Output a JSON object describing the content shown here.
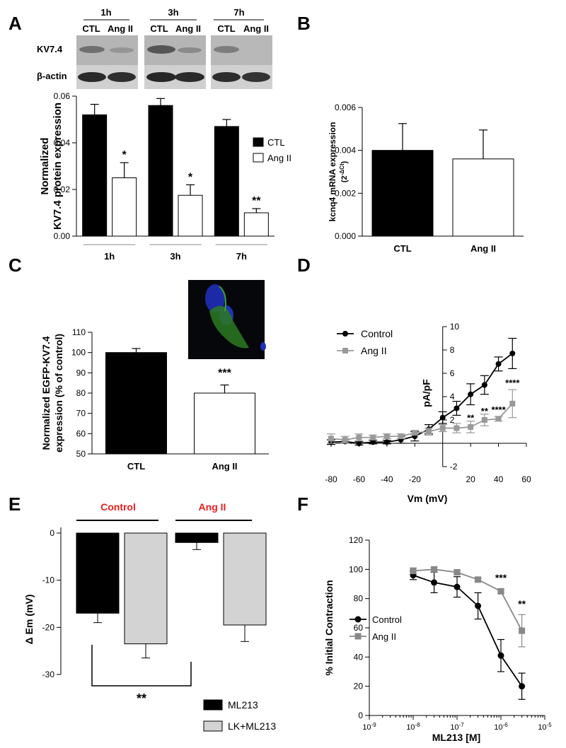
{
  "panels": {
    "A": "A",
    "B": "B",
    "C": "C",
    "D": "D",
    "E": "E",
    "F": "F"
  },
  "chart_data": [
    {
      "id": "A",
      "type": "bar",
      "blot": {
        "time_labels": [
          "1h",
          "3h",
          "7h"
        ],
        "lane_labels": [
          "CTL",
          "Ang II",
          "CTL",
          "Ang II",
          "CTL",
          "Ang II"
        ],
        "row_labels": [
          "KV7.4",
          "β-actin"
        ]
      },
      "ylabel": "Normalized KV7.4 protein expression",
      "ylim": [
        0,
        0.06
      ],
      "yticks": [
        "0.00",
        "0.02",
        "0.04",
        "0.06"
      ],
      "groups": [
        "1h",
        "3h",
        "7h"
      ],
      "series": [
        {
          "name": "CTL",
          "color": "#000000",
          "values": [
            0.052,
            0.056,
            0.047
          ],
          "errors": [
            0.0045,
            0.003,
            0.003
          ]
        },
        {
          "name": "Ang II",
          "color": "#ffffff",
          "values": [
            0.025,
            0.0175,
            0.01
          ],
          "errors": [
            0.0065,
            0.0045,
            0.0018
          ]
        }
      ],
      "significance": [
        "*",
        "*",
        "**"
      ]
    },
    {
      "id": "B",
      "type": "bar",
      "ylabel": "kcnq4 mRNA expression (2^-ΔCt)",
      "ylim": [
        0,
        0.006
      ],
      "yticks": [
        "0.000",
        "0.002",
        "0.004",
        "0.006"
      ],
      "categories": [
        "CTL",
        "Ang II"
      ],
      "values": [
        0.004,
        0.0036
      ],
      "errors": [
        0.00125,
        0.00135
      ],
      "colors": [
        "#000000",
        "#ffffff"
      ]
    },
    {
      "id": "C",
      "type": "bar",
      "ylabel": "Normalized EGFP-KV7.4 expression (% of control)",
      "ylim": [
        50,
        110
      ],
      "yticks": [
        "50",
        "60",
        "70",
        "80",
        "90",
        "100",
        "110"
      ],
      "categories": [
        "CTL",
        "Ang II"
      ],
      "values": [
        100,
        80
      ],
      "errors": [
        2,
        4
      ],
      "colors": [
        "#000000",
        "#ffffff"
      ],
      "significance": [
        "",
        "***"
      ]
    },
    {
      "id": "D",
      "type": "line",
      "xlabel": "Vm (mV)",
      "ylabel": "pA/pF",
      "xlim": [
        -80,
        60
      ],
      "ylim": [
        -2,
        10
      ],
      "xticks": [
        "-80",
        "-60",
        "-40",
        "-20",
        "20",
        "40",
        "60"
      ],
      "yticks": [
        "-2",
        "2",
        "4",
        "6",
        "8",
        "10"
      ],
      "x": [
        -80,
        -70,
        -60,
        -50,
        -40,
        -30,
        -20,
        -10,
        0,
        10,
        20,
        30,
        40,
        50
      ],
      "series": [
        {
          "name": "Control",
          "color": "#000000",
          "marker": "circle",
          "values": [
            0.1,
            0.15,
            0.0,
            0.1,
            0.1,
            0.3,
            0.6,
            1.2,
            2.2,
            3.0,
            4.2,
            5.0,
            6.8,
            7.7
          ],
          "errors": [
            0.2,
            0.15,
            0.15,
            0.15,
            0.15,
            0.3,
            0.4,
            0.4,
            0.5,
            0.6,
            0.9,
            0.8,
            0.6,
            1.3
          ]
        },
        {
          "name": "Ang II",
          "color": "#999999",
          "marker": "square",
          "values": [
            0.4,
            0.3,
            0.5,
            0.5,
            0.6,
            0.6,
            0.9,
            1.0,
            1.3,
            1.3,
            1.4,
            2.0,
            2.1,
            3.4
          ],
          "errors": [
            0.4,
            0.3,
            0.3,
            0.2,
            0.2,
            0.2,
            0.2,
            0.3,
            0.3,
            0.4,
            0.5,
            0.5,
            0.2,
            1.2
          ]
        }
      ],
      "significance": [
        {
          "x": 20,
          "y": 1.9,
          "label": "**"
        },
        {
          "x": 30,
          "y": 2.5,
          "label": "**"
        },
        {
          "x": 40,
          "y": 2.6,
          "label": "****"
        },
        {
          "x": 50,
          "y": 4.9,
          "label": "****"
        }
      ]
    },
    {
      "id": "E",
      "type": "bar",
      "ylabel": "Δ Em (mV)",
      "ylim": [
        -30,
        0
      ],
      "yticks": [
        "0",
        "-10",
        "-20",
        "-30"
      ],
      "group_labels": [
        "Control",
        "Ang II"
      ],
      "group_label_color": "#ee1c1c",
      "categories": [
        "ML213",
        "LK+ML213"
      ],
      "series": [
        {
          "name": "ML213",
          "color": "#000000",
          "values": [
            -17,
            -2
          ],
          "errors": [
            2,
            1.5
          ]
        },
        {
          "name": "LK+ML213",
          "color": "#d3d3d3",
          "values": [
            -23.5,
            -19.5
          ],
          "errors": [
            3,
            3.5
          ]
        }
      ],
      "significance": "**"
    },
    {
      "id": "F",
      "type": "line",
      "xscale": "log",
      "xlabel": "ML213 [M]",
      "ylabel": "% Initial Contraction",
      "ylim": [
        0,
        120
      ],
      "yticks": [
        "0",
        "20",
        "40",
        "60",
        "80",
        "100",
        "120"
      ],
      "xticks": [
        "10-9",
        "10-8",
        "10-7",
        "10-6",
        "10-5"
      ],
      "x": [
        1e-08,
        3e-08,
        1e-07,
        3e-07,
        1e-06,
        3e-06
      ],
      "series": [
        {
          "name": "Control",
          "color": "#000000",
          "marker": "circle",
          "values": [
            96,
            91,
            88,
            75,
            41,
            20
          ],
          "errors": [
            3,
            7,
            7,
            9,
            11,
            9
          ]
        },
        {
          "name": "Ang II",
          "color": "#888888",
          "marker": "square",
          "values": [
            99,
            100,
            98,
            93,
            85,
            58
          ],
          "errors": [
            2,
            1.5,
            1.5,
            1.5,
            1.5,
            11
          ]
        }
      ],
      "significance": [
        {
          "x": 1e-06,
          "y": 92,
          "label": "***"
        },
        {
          "x": 3e-06,
          "y": 74,
          "label": "**"
        }
      ]
    }
  ]
}
